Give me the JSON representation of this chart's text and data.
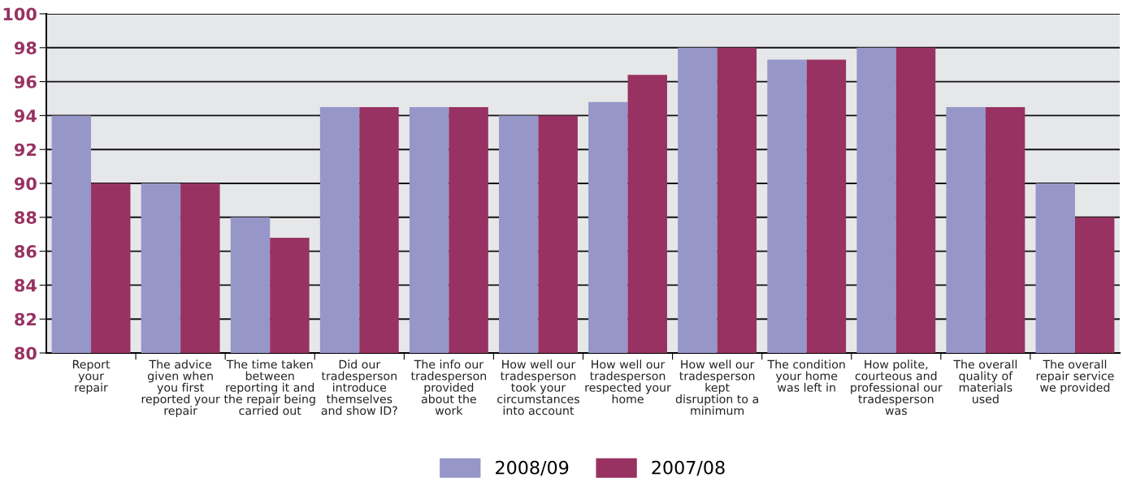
{
  "chart_data": {
    "type": "bar",
    "categories": [
      "Report\nyour\nrepair",
      "The advice\ngiven when\nyou first\nreported your\nrepair",
      "The time taken\nbetween\nreporting it and\nthe repair being\ncarried out",
      "Did our\ntradesperson\nintroduce\nthemselves\nand show ID?",
      "The info our\ntradesperson\nprovided\nabout the\nwork",
      "How well our\ntradesperson\ntook your\ncircumstances\ninto account",
      "How well our\ntradesperson\nrespected your\nhome",
      "How well our\ntradesperson\nkept\ndisruption to a\nminimum",
      "The condition\nyour home\nwas left in",
      "How polite,\ncourteous and\nprofessional our\ntradesperson\nwas",
      "The overall\nquality of\nmaterials\nused",
      "The overall\nrepair service\nwe provided"
    ],
    "series": [
      {
        "name": "2008/09",
        "color": "#9696c8",
        "values": [
          94,
          90,
          88,
          94.5,
          94.5,
          94,
          94.8,
          98,
          97.3,
          98,
          94.5,
          90
        ]
      },
      {
        "name": "2007/08",
        "color": "#983262",
        "values": [
          90,
          90,
          86.8,
          94.5,
          94.5,
          94,
          96.4,
          98,
          97.3,
          98,
          94.5,
          88
        ]
      }
    ],
    "ylim": [
      80,
      100
    ],
    "yticks": [
      80,
      82,
      84,
      86,
      88,
      90,
      92,
      94,
      96,
      98,
      100
    ],
    "grid": "y",
    "legend": "bottom"
  }
}
